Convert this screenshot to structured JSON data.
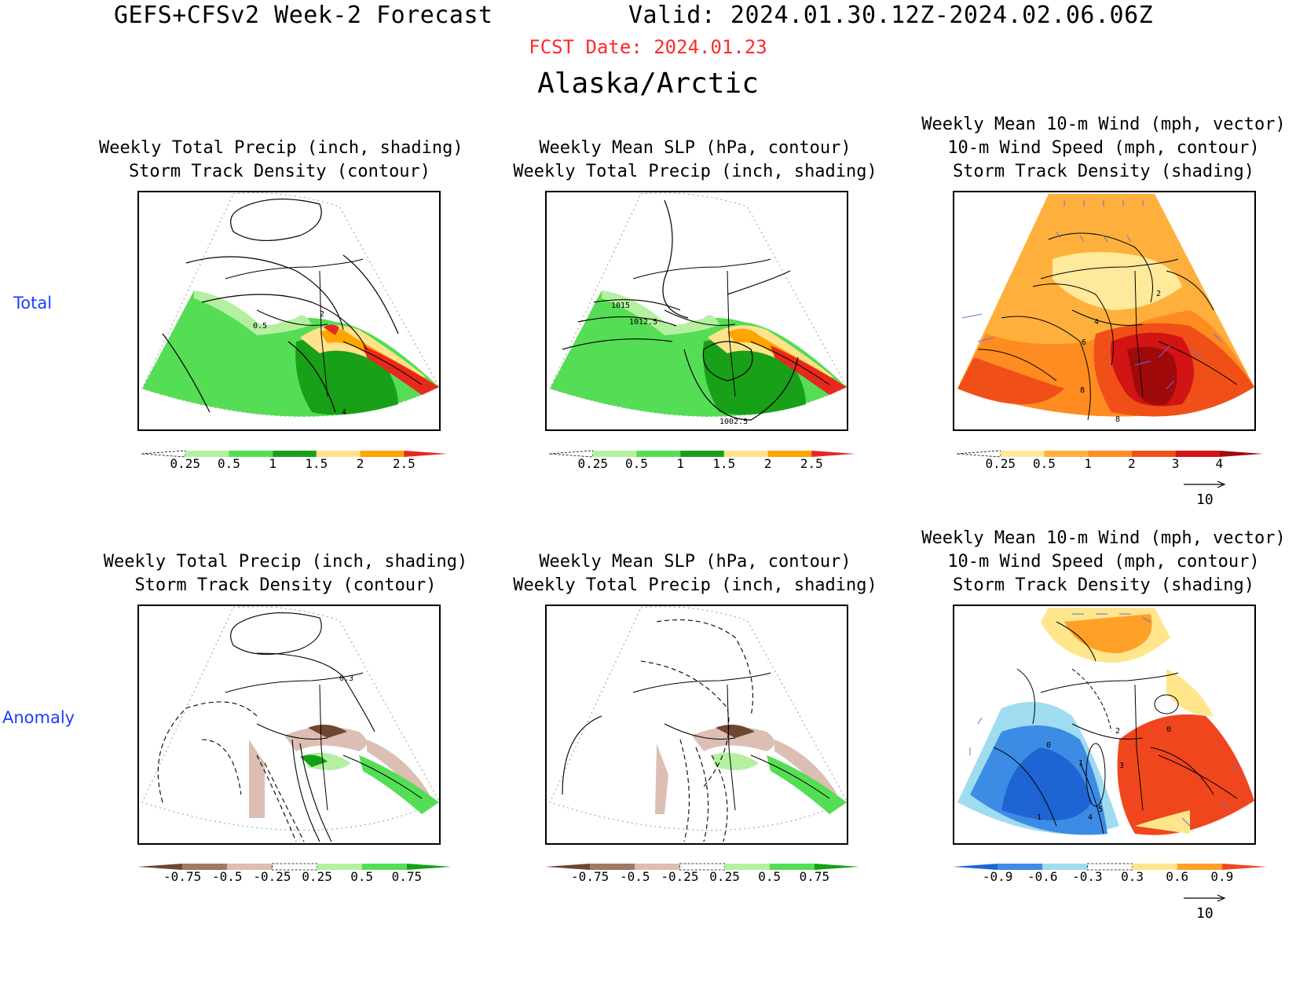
{
  "header": {
    "title": "GEFS+CFSv2 Week-2 Forecast",
    "valid": "Valid: 2024.01.30.12Z-2024.02.06.06Z",
    "fcst_date": "FCST Date: 2024.01.23",
    "region": "Alaska/Arctic"
  },
  "rows": {
    "total": "Total",
    "anomaly": "Anomaly"
  },
  "titles": {
    "precip_track": [
      "Weekly Total Precip (inch, shading)",
      "Storm Track Density (contour)"
    ],
    "slp_precip": [
      "Weekly Mean SLP (hPa, contour)",
      "Weekly Total Precip (inch, shading)"
    ],
    "wind_track": [
      "Weekly Mean 10-m Wind (mph, vector)",
      "10-m Wind Speed (mph, contour)",
      "Storm Track Density (shading)"
    ]
  },
  "colorbars": {
    "precip_total": {
      "labels": [
        "0.25",
        "0.5",
        "1",
        "1.5",
        "2",
        "2.5"
      ],
      "colors": [
        "#ffffff",
        "#b4f0a0",
        "#55dd55",
        "#19a019",
        "#ffe28c",
        "#ffa500",
        "#e8281e"
      ]
    },
    "track_total": {
      "labels": [
        "0.25",
        "0.5",
        "1",
        "2",
        "3",
        "4"
      ],
      "colors": [
        "#ffffff",
        "#ffe99a",
        "#ffb03c",
        "#ff8c20",
        "#f05018",
        "#d21414",
        "#a00a0a"
      ]
    },
    "precip_anom": {
      "labels": [
        "-0.75",
        "-0.5",
        "-0.25",
        "0.25",
        "0.5",
        "0.75"
      ],
      "colors": [
        "#6e4632",
        "#a07864",
        "#dcbeb4",
        "#ffffff",
        "#b4f0a0",
        "#55dd55",
        "#14a014"
      ]
    },
    "track_anom": {
      "labels": [
        "-0.9",
        "-0.6",
        "-0.3",
        "0.3",
        "0.6",
        "0.9"
      ],
      "colors": [
        "#1e64d2",
        "#3c8ce6",
        "#a0dcf0",
        "#ffffff",
        "#ffe68c",
        "#ffa028",
        "#f0461e"
      ]
    }
  },
  "contour_labels": {
    "total_precip": [
      "0.5",
      "2",
      "4"
    ],
    "total_slp": [
      "1015",
      "1012.5",
      "1002.5"
    ],
    "total_wind": [
      "2",
      "4",
      "6",
      "8",
      "8"
    ],
    "anom_precip": [
      "0.3"
    ],
    "anom_wind": [
      "0",
      "1",
      "2",
      "3",
      "0",
      "1",
      "4",
      "5"
    ]
  },
  "vector_ref": "10",
  "colors": {
    "header_fcst": "#ff2a2a",
    "row_label": "#1e3cff",
    "wind_vector": "#6a6af0"
  }
}
